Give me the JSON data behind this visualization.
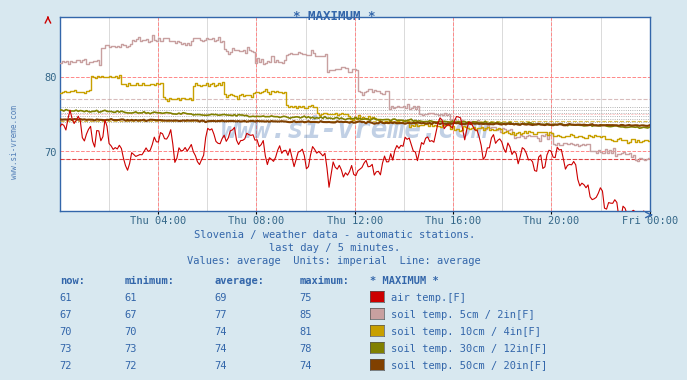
{
  "title": "* MAXIMUM *",
  "bg_color": "#d8e8f0",
  "plot_bg_color": "#ffffff",
  "x_labels": [
    "Thu 04:00",
    "Thu 08:00",
    "Thu 12:00",
    "Thu 16:00",
    "Thu 20:00",
    "Fri 00:00"
  ],
  "x_ticks_frac": [
    0.1667,
    0.3333,
    0.5,
    0.6667,
    0.8333,
    1.0
  ],
  "n_points": 288,
  "y_min": 62,
  "y_max": 88,
  "y_ticks": [
    70,
    80
  ],
  "subtitle1": "Slovenia / weather data - automatic stations.",
  "subtitle2": "last day / 5 minutes.",
  "subtitle3": "Values: average  Units: imperial  Line: average",
  "watermark": "www.si-vreme.com",
  "table_headers": [
    "now:",
    "minimum:",
    "average:",
    "maximum:",
    "* MAXIMUM *"
  ],
  "rows": [
    {
      "now": 61,
      "min": 61,
      "avg": 69,
      "max": 75,
      "color": "#cc0000",
      "label": "air temp.[F]"
    },
    {
      "now": 67,
      "min": 67,
      "avg": 77,
      "max": 85,
      "color": "#c8a0a0",
      "label": "soil temp. 5cm / 2in[F]"
    },
    {
      "now": 70,
      "min": 70,
      "avg": 74,
      "max": 81,
      "color": "#c8a000",
      "label": "soil temp. 10cm / 4in[F]"
    },
    {
      "now": 73,
      "min": 73,
      "avg": 74,
      "max": 78,
      "color": "#808000",
      "label": "soil temp. 30cm / 12in[F]"
    },
    {
      "now": 72,
      "min": 72,
      "avg": 74,
      "max": 74,
      "color": "#804000",
      "label": "soil temp. 50cm / 20in[F]"
    }
  ],
  "line_colors": [
    "#cc0000",
    "#c8a0a0",
    "#c8a000",
    "#808000",
    "#804000"
  ],
  "avg_line_color_red": "#cc0000",
  "avg_line_color_pink": "#c8a0a0",
  "avg_line_color_gold": "#c8a000",
  "dotted_line_color": "#888888",
  "red_grid_color": "#ffaaaa",
  "gray_grid_color": "#cccccc"
}
